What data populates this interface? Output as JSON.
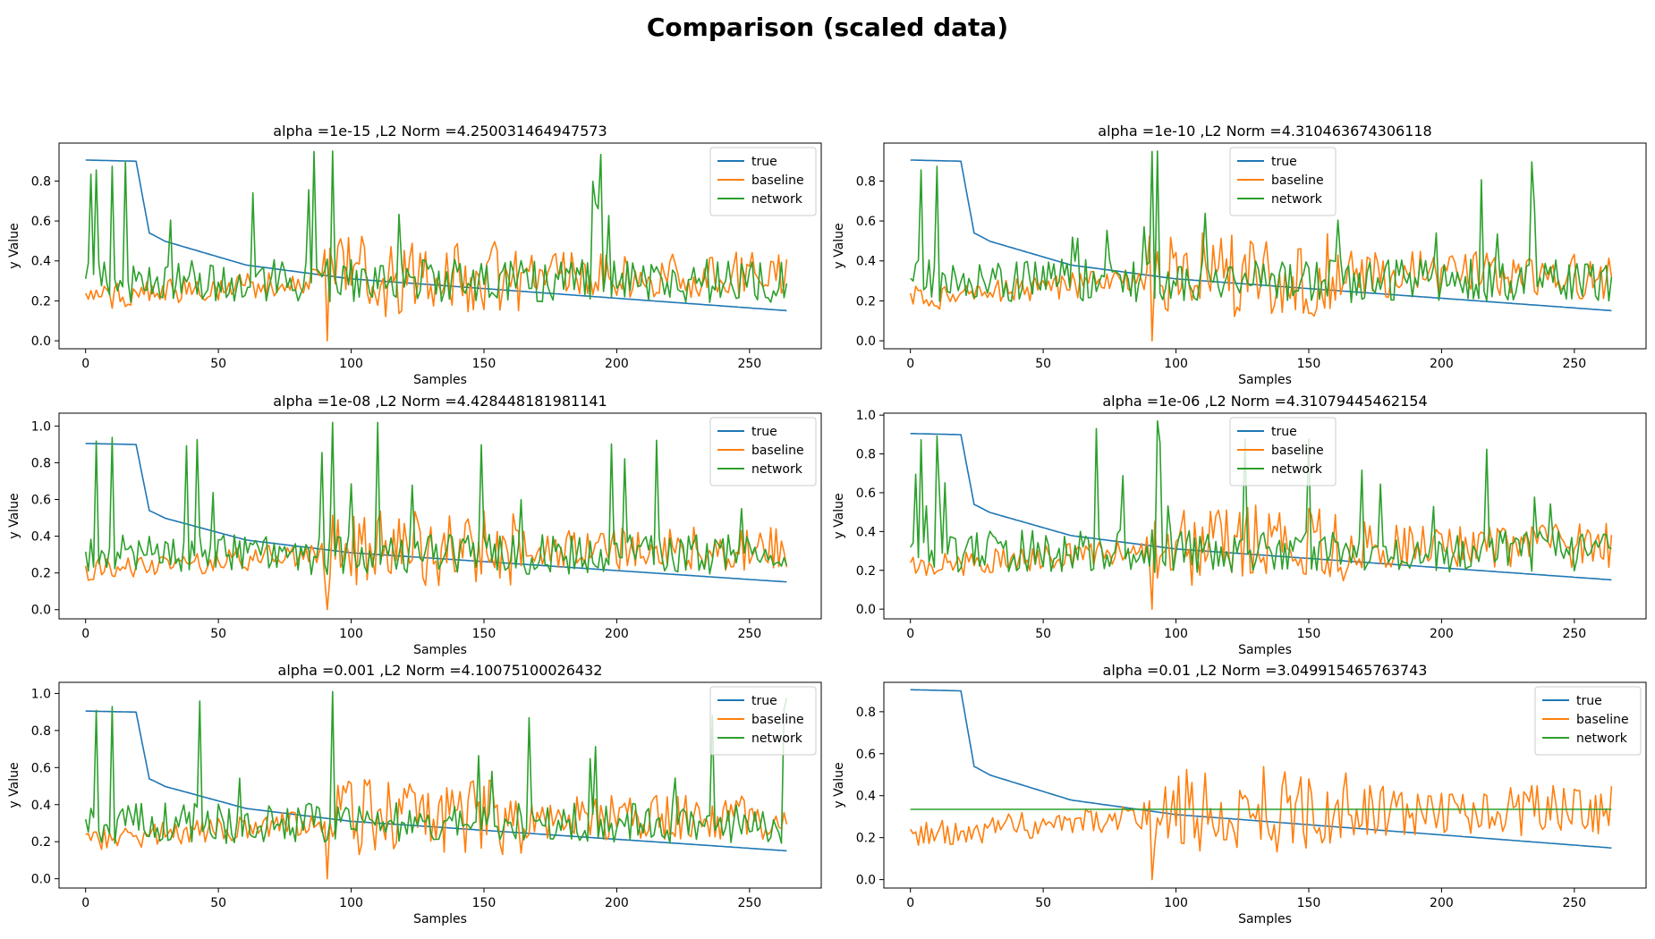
{
  "figure": {
    "title": "Comparison (scaled data)"
  },
  "colors": {
    "true": "#1f77b4",
    "baseline": "#ff7f0e",
    "network": "#2ca02c"
  },
  "chart_data": [
    {
      "type": "line",
      "title": "alpha =1e-15 ,L2 Norm =4.250031464947573",
      "xlabel": "Samples",
      "ylabel": "y Value",
      "xlim": [
        -10,
        277
      ],
      "ylim": [
        -0.04,
        0.99
      ],
      "xticks": [
        0,
        50,
        100,
        150,
        200,
        250
      ],
      "yticks": [
        0.0,
        0.2,
        0.4,
        0.6,
        0.8
      ],
      "ytick_labels": [
        "0.0",
        "0.2",
        "0.4",
        "0.6",
        "0.8"
      ],
      "legend": {
        "position": "top-right",
        "entries": [
          "true",
          "baseline",
          "network"
        ]
      },
      "series": [
        {
          "name": "true",
          "trend": "true_curve",
          "n_points": 265
        },
        {
          "name": "baseline",
          "trend": "baseline_noise",
          "n_points": 265
        },
        {
          "name": "network",
          "trend": "network_spiky",
          "n_points": 265,
          "peak_max": 0.95
        }
      ]
    },
    {
      "type": "line",
      "title": "alpha =1e-10 ,L2 Norm =4.310463674306118",
      "xlabel": "Samples",
      "ylabel": "y Value",
      "xlim": [
        -10,
        277
      ],
      "ylim": [
        -0.04,
        0.99
      ],
      "xticks": [
        0,
        50,
        100,
        150,
        200,
        250
      ],
      "yticks": [
        0.0,
        0.2,
        0.4,
        0.6,
        0.8
      ],
      "ytick_labels": [
        "0.0",
        "0.2",
        "0.4",
        "0.6",
        "0.8"
      ],
      "legend": {
        "position": "top-center",
        "entries": [
          "true",
          "baseline",
          "network"
        ]
      },
      "series": [
        {
          "name": "true",
          "trend": "true_curve",
          "n_points": 265
        },
        {
          "name": "baseline",
          "trend": "baseline_noise",
          "n_points": 265
        },
        {
          "name": "network",
          "trend": "network_spiky",
          "n_points": 265,
          "peak_max": 0.95
        }
      ]
    },
    {
      "type": "line",
      "title": "alpha =1e-08 ,L2 Norm =4.428448181981141",
      "xlabel": "Samples",
      "ylabel": "y Value",
      "xlim": [
        -10,
        277
      ],
      "ylim": [
        -0.05,
        1.07
      ],
      "xticks": [
        0,
        50,
        100,
        150,
        200,
        250
      ],
      "yticks": [
        0.0,
        0.2,
        0.4,
        0.6,
        0.8,
        1.0
      ],
      "ytick_labels": [
        "0.0",
        "0.2",
        "0.4",
        "0.6",
        "0.8",
        "1.0"
      ],
      "legend": {
        "position": "top-right",
        "entries": [
          "true",
          "baseline",
          "network"
        ]
      },
      "series": [
        {
          "name": "true",
          "trend": "true_curve",
          "n_points": 265
        },
        {
          "name": "baseline",
          "trend": "baseline_noise",
          "n_points": 265
        },
        {
          "name": "network",
          "trend": "network_spiky",
          "n_points": 265,
          "peak_max": 1.02
        }
      ]
    },
    {
      "type": "line",
      "title": "alpha =1e-06 ,L2 Norm =4.31079445462154",
      "xlabel": "Samples",
      "ylabel": "y Value",
      "xlim": [
        -10,
        277
      ],
      "ylim": [
        -0.05,
        1.01
      ],
      "xticks": [
        0,
        50,
        100,
        150,
        200,
        250
      ],
      "yticks": [
        0.0,
        0.2,
        0.4,
        0.6,
        0.8,
        1.0
      ],
      "ytick_labels": [
        "0.0",
        "0.2",
        "0.4",
        "0.6",
        "0.8",
        "1.0"
      ],
      "legend": {
        "position": "top-center",
        "entries": [
          "true",
          "baseline",
          "network"
        ]
      },
      "series": [
        {
          "name": "true",
          "trend": "true_curve",
          "n_points": 265
        },
        {
          "name": "baseline",
          "trend": "baseline_noise",
          "n_points": 265
        },
        {
          "name": "network",
          "trend": "network_spiky",
          "n_points": 265,
          "peak_max": 0.97
        }
      ]
    },
    {
      "type": "line",
      "title": "alpha =0.001 ,L2 Norm =4.10075100026432",
      "xlabel": "Samples",
      "ylabel": "y Value",
      "xlim": [
        -10,
        277
      ],
      "ylim": [
        -0.05,
        1.06
      ],
      "xticks": [
        0,
        50,
        100,
        150,
        200,
        250
      ],
      "yticks": [
        0.0,
        0.2,
        0.4,
        0.6,
        0.8,
        1.0
      ],
      "ytick_labels": [
        "0.0",
        "0.2",
        "0.4",
        "0.6",
        "0.8",
        "1.0"
      ],
      "legend": {
        "position": "top-right",
        "entries": [
          "true",
          "baseline",
          "network"
        ]
      },
      "series": [
        {
          "name": "true",
          "trend": "true_curve",
          "n_points": 265
        },
        {
          "name": "baseline",
          "trend": "baseline_noise",
          "n_points": 265
        },
        {
          "name": "network",
          "trend": "network_spiky",
          "n_points": 265,
          "peak_max": 1.01
        }
      ]
    },
    {
      "type": "line",
      "title": "alpha =0.01 ,L2 Norm =3.049915465763743",
      "xlabel": "Samples",
      "ylabel": "y Value",
      "xlim": [
        -10,
        277
      ],
      "ylim": [
        -0.04,
        0.94
      ],
      "xticks": [
        0,
        50,
        100,
        150,
        200,
        250
      ],
      "yticks": [
        0.0,
        0.2,
        0.4,
        0.6,
        0.8
      ],
      "ytick_labels": [
        "0.0",
        "0.2",
        "0.4",
        "0.6",
        "0.8"
      ],
      "legend": {
        "position": "top-right",
        "entries": [
          "true",
          "baseline",
          "network"
        ]
      },
      "series": [
        {
          "name": "true",
          "trend": "true_curve",
          "n_points": 265
        },
        {
          "name": "baseline",
          "trend": "baseline_noise",
          "n_points": 265
        },
        {
          "name": "network",
          "trend": "constant",
          "n_points": 265,
          "value": 0.335
        }
      ]
    }
  ]
}
